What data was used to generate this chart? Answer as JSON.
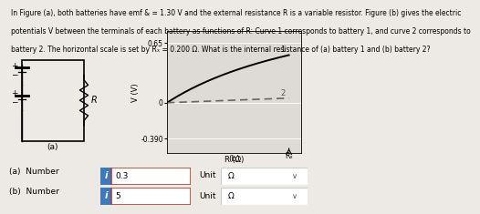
{
  "line1": "In Figure (a), both batteries have emf & = 1.30 V and the external resistance R is a variable resistor. Figure (b) gives the electric",
  "line2": "potentials V between the terminals of each battery as functions of R: Curve 1 corresponds to battery 1, and curve 2 corresponds to",
  "line3": "battery 2. The horizontal scale is set by Rₓ = 0.200 Ω. What is the internal resistance of (a) battery 1 and (b) battery 2?",
  "yticks": [
    -0.39,
    0,
    0.65
  ],
  "ylim": [
    -0.55,
    0.78
  ],
  "xlim": [
    0,
    0.22
  ],
  "xlabel": "R (Ω)",
  "ylabel": "V (V)",
  "curve1_color": "#000000",
  "curve2_color": "#666666",
  "bg_color": "#ede9e5",
  "plot_bg": "#dedad6",
  "grid_color": "#ffffff",
  "answer_a": "0.3",
  "answer_b": "5",
  "unit": "Ω",
  "Rs_label": "Rₓ",
  "emf": 1.3,
  "r1": 0.3,
  "r2": 5.0,
  "Rs": 0.2,
  "label_a": "(a)  Number",
  "label_b": "(b)  Number",
  "unit_label": "Unit",
  "icon_color": "#3a7abf",
  "box_border_color": "#c0392b",
  "unit_box_color": "#cccccc"
}
